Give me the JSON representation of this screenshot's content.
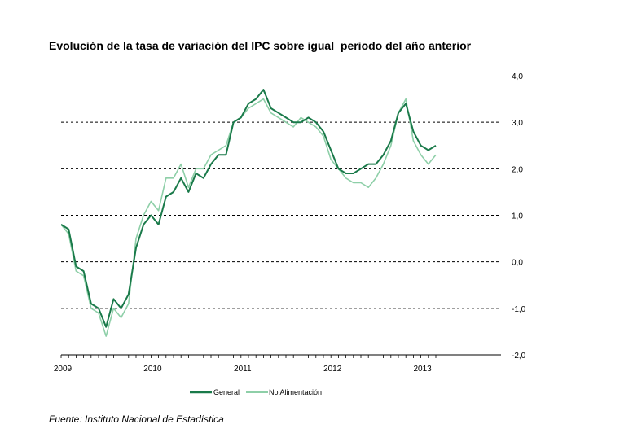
{
  "chart_data": {
    "type": "line",
    "title": "Evolución de la tasa de variación del IPC sobre igual  periodo del año anterior",
    "source": "Fuente: Instituto Nacional de Estadística",
    "ylim": [
      -2.0,
      4.0
    ],
    "yticks": [
      "4,0",
      "3,0",
      "2,0",
      "1,0",
      "0,0",
      "-1,0",
      "-2,0"
    ],
    "ytick_values": [
      4,
      3,
      2,
      1,
      0,
      -1,
      -2
    ],
    "dashed_gridlines": [
      3,
      2,
      1,
      0,
      -1
    ],
    "xlabels": [
      "2009",
      "2010",
      "2011",
      "2012",
      "2013"
    ],
    "x_start": "2009-01",
    "legend_position": "bottom",
    "series": [
      {
        "name": "General",
        "color": "#1a7a4a",
        "values": [
          0.8,
          0.7,
          -0.1,
          -0.2,
          -0.9,
          -1.0,
          -1.4,
          -0.8,
          -1.0,
          -0.7,
          0.3,
          0.8,
          1.0,
          0.8,
          1.4,
          1.5,
          1.8,
          1.5,
          1.9,
          1.8,
          2.1,
          2.3,
          2.3,
          3.0,
          3.1,
          3.4,
          3.5,
          3.7,
          3.3,
          3.2,
          3.1,
          3.0,
          3.0,
          3.1,
          3.0,
          2.8,
          2.4,
          2.0,
          1.9,
          1.9,
          2.0,
          2.1,
          2.1,
          2.3,
          2.6,
          3.2,
          3.4,
          2.8,
          2.5,
          2.4,
          2.5
        ]
      },
      {
        "name": "No Alimentación",
        "color": "#8ecfa8",
        "values": [
          0.8,
          0.6,
          -0.2,
          -0.3,
          -1.0,
          -1.1,
          -1.6,
          -1.0,
          -1.2,
          -0.9,
          0.5,
          1.0,
          1.3,
          1.1,
          1.8,
          1.8,
          2.1,
          1.6,
          2.0,
          2.0,
          2.3,
          2.4,
          2.5,
          3.0,
          3.1,
          3.3,
          3.4,
          3.5,
          3.2,
          3.1,
          3.0,
          2.9,
          3.1,
          3.0,
          2.9,
          2.7,
          2.2,
          2.0,
          1.8,
          1.7,
          1.7,
          1.6,
          1.8,
          2.1,
          2.5,
          3.2,
          3.5,
          2.6,
          2.3,
          2.1,
          2.3
        ]
      }
    ]
  }
}
